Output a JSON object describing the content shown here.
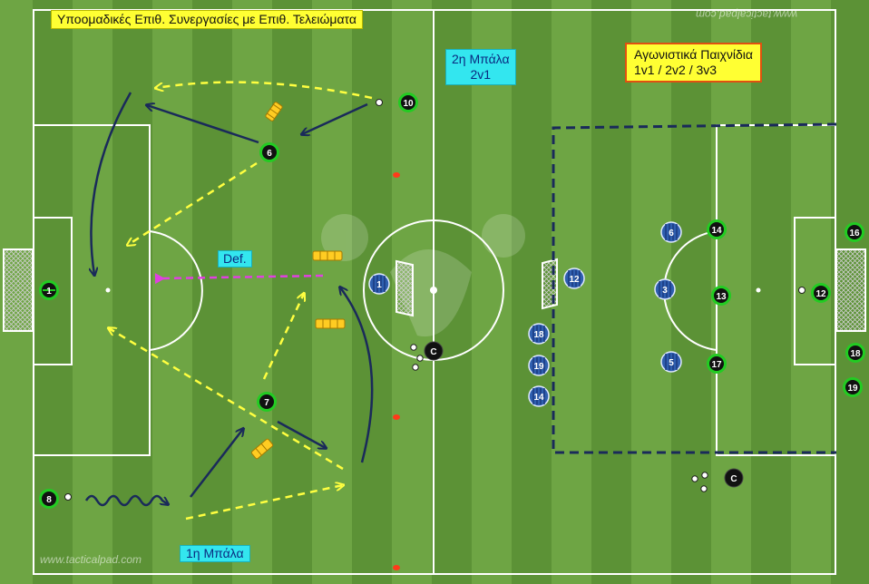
{
  "labels": {
    "title": "Υποομαδικές Επιθ. Συνεργασίες με Επιθ. Τελειώματα",
    "ball2_line1": "2η Μπάλα",
    "ball2_line2": "2v1",
    "games_line1": "Αγωνιστικά Παιχνίδια",
    "games_line2": "1v1 / 2v2 / 3v3",
    "def": "Def.",
    "ball1": "1η Μπάλα",
    "watermark_bottom": "www.tacticalpad.com",
    "watermark_top": "www.tacticalpad.com"
  },
  "players_green": [
    "10",
    "6",
    "7",
    "8",
    "14",
    "13",
    "17",
    "12",
    "16",
    "18",
    "19"
  ],
  "players_blue": [
    "1",
    "12",
    "6",
    "3",
    "5",
    "18",
    "19",
    "14"
  ],
  "players_black": [
    "C",
    "C"
  ],
  "goalkeeper_left": "1",
  "colors": {
    "grass_light": "#6ea544",
    "grass_dark": "#5c9236",
    "arrow_navy": "#1a2a5a",
    "arrow_yellow": "#ffff40",
    "arrow_magenta": "#e040e0",
    "player_green_ring": "#22cc22",
    "player_blue": "#2f5faf"
  }
}
